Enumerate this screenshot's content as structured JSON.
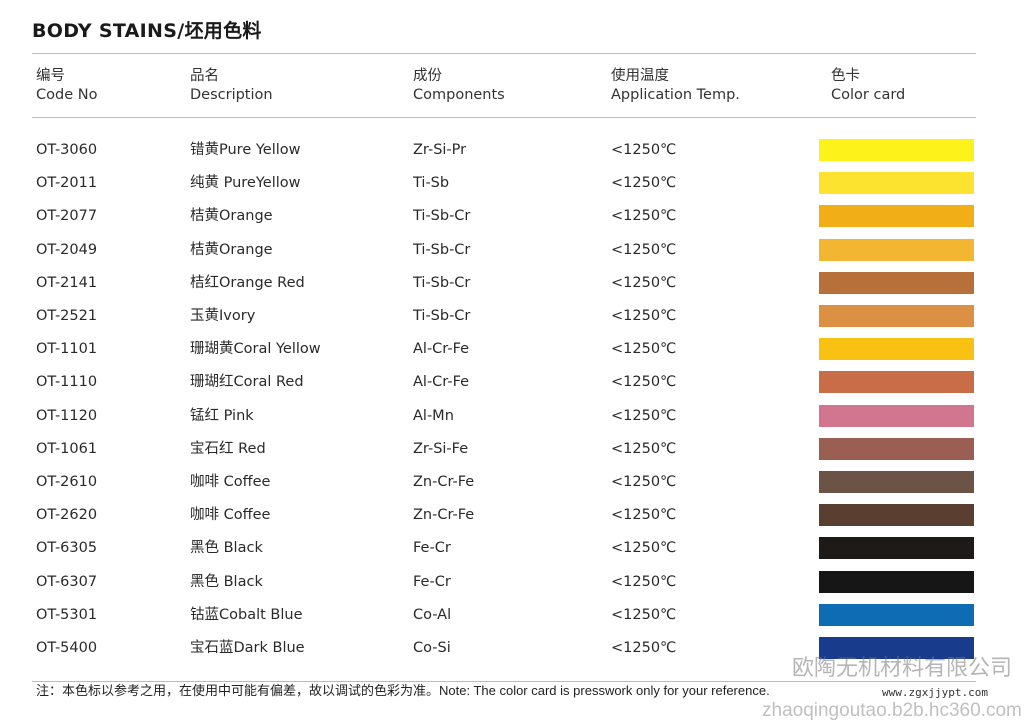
{
  "title": "BODY STAINS/坯用色料",
  "headers": [
    {
      "cn": "编号",
      "en": "Code No"
    },
    {
      "cn": "品名",
      "en": "Description"
    },
    {
      "cn": "成份",
      "en": "Components"
    },
    {
      "cn": "使用温度",
      "en": "Application Temp."
    },
    {
      "cn": "色卡",
      "en": "Color card"
    }
  ],
  "rows": [
    {
      "code": "OT-3060",
      "desc": "错黄Pure Yellow",
      "comp": "Zr-Si-Pr",
      "temp": "<1250℃",
      "color": "#fdf21a"
    },
    {
      "code": "OT-2011",
      "desc": "纯黄 PureYellow",
      "comp": "Ti-Sb",
      "temp": "<1250℃",
      "color": "#fbe330"
    },
    {
      "code": "OT-2077",
      "desc": "桔黄Orange",
      "comp": "Ti-Sb-Cr",
      "temp": "<1250℃",
      "color": "#f2ae17"
    },
    {
      "code": "OT-2049",
      "desc": "桔黄Orange",
      "comp": "Ti-Sb-Cr",
      "temp": "<1250℃",
      "color": "#f3b632"
    },
    {
      "code": "OT-2141",
      "desc": "桔红Orange Red",
      "comp": "Ti-Sb-Cr",
      "temp": "<1250℃",
      "color": "#b8703a"
    },
    {
      "code": "OT-2521",
      "desc": "玉黄Ivory",
      "comp": "Ti-Sb-Cr",
      "temp": "<1250℃",
      "color": "#db9044"
    },
    {
      "code": "OT-1101",
      "desc": "珊瑚黄Coral Yellow",
      "comp": "Al-Cr-Fe",
      "temp": "<1250℃",
      "color": "#f9c212"
    },
    {
      "code": "OT-1110",
      "desc": "珊瑚红Coral Red",
      "comp": "Al-Cr-Fe",
      "temp": "<1250℃",
      "color": "#c86d48"
    },
    {
      "code": "OT-1120",
      "desc": "锰红 Pink",
      "comp": "Al-Mn",
      "temp": "<1250℃",
      "color": "#d27690"
    },
    {
      "code": "OT-1061",
      "desc": "宝石红 Red",
      "comp": "Zr-Si-Fe",
      "temp": "<1250℃",
      "color": "#9a5e52"
    },
    {
      "code": "OT-2610",
      "desc": "咖啡 Coffee",
      "comp": "Zn-Cr-Fe",
      "temp": "<1250℃",
      "color": "#6b5446"
    },
    {
      "code": "OT-2620",
      "desc": "咖啡 Coffee",
      "comp": "Zn-Cr-Fe",
      "temp": "<1250℃",
      "color": "#5a3f30"
    },
    {
      "code": "OT-6305",
      "desc": "黑色 Black",
      "comp": "Fe-Cr",
      "temp": "<1250℃",
      "color": "#1d1a18"
    },
    {
      "code": "OT-6307",
      "desc": "黑色 Black",
      "comp": "Fe-Cr",
      "temp": "<1250℃",
      "color": "#161616"
    },
    {
      "code": "OT-5301",
      "desc": "钴蓝Cobalt Blue",
      "comp": "Co-Al",
      "temp": "<1250℃",
      "color": "#0e6cb4"
    },
    {
      "code": "OT-5400",
      "desc": "宝石蓝Dark Blue",
      "comp": "Co-Si",
      "temp": "<1250℃",
      "color": "#183b8c"
    }
  ],
  "note": "注：本色标以参考之用，在使用中可能有偏差，故以调试的色彩为准。Note: The color card is presswork only for your reference.",
  "watermarks": {
    "company": "欧陶无机材料有限公司",
    "site1": "www.zgxjjypt.com",
    "site2": "zhaoqingoutao.b2b.hc360.com"
  }
}
